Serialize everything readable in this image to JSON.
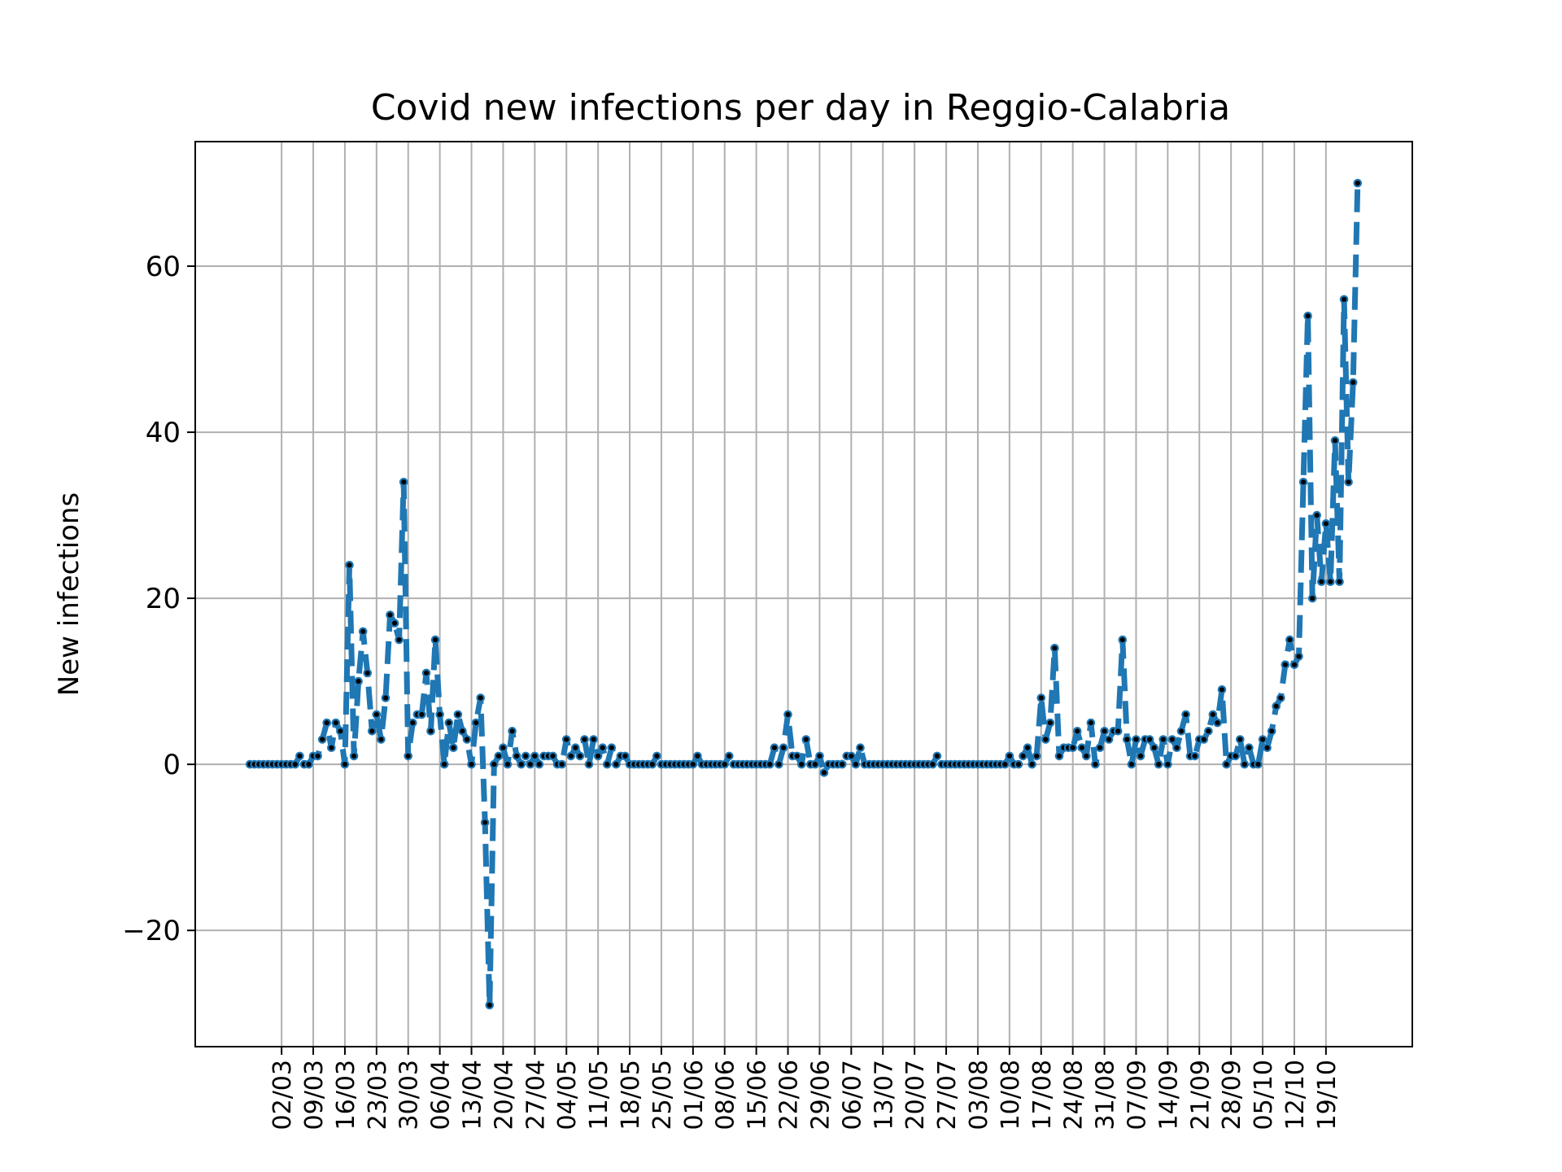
{
  "chart_data": {
    "type": "line",
    "title": "Covid new infections per day in Reggio-Calabria",
    "xlabel": "",
    "ylabel": "New infections",
    "ylim": [
      -34,
      75
    ],
    "yticks": [
      -20,
      0,
      20,
      40,
      60
    ],
    "ytick_labels": [
      "−20",
      "0",
      "20",
      "40",
      "60"
    ],
    "grid": true,
    "legend": "none",
    "line_style": "dashed",
    "x_start": "24/02",
    "x_end": "19/10",
    "xtick_labels": [
      "02/03",
      "09/03",
      "16/03",
      "23/03",
      "30/03",
      "06/04",
      "13/04",
      "20/04",
      "27/04",
      "04/05",
      "11/05",
      "18/05",
      "25/05",
      "01/06",
      "08/06",
      "15/06",
      "22/06",
      "29/06",
      "06/07",
      "13/07",
      "20/07",
      "27/07",
      "03/08",
      "10/08",
      "17/08",
      "24/08",
      "31/08",
      "07/09",
      "14/09",
      "21/09",
      "28/09",
      "05/10",
      "12/10",
      "19/10"
    ],
    "series": [
      {
        "color": "#1f77b4",
        "marker_color": "#000000",
        "values": [
          0,
          0,
          0,
          0,
          0,
          0,
          0,
          0,
          0,
          0,
          0,
          1,
          0,
          0,
          1,
          1,
          3,
          5,
          2,
          5,
          4,
          0,
          24,
          1,
          10,
          16,
          11,
          4,
          6,
          3,
          8,
          18,
          17,
          15,
          34,
          1,
          5,
          6,
          6,
          11,
          4,
          15,
          6,
          0,
          5,
          2,
          6,
          4,
          3,
          0,
          5,
          8,
          -7,
          -29,
          0,
          1,
          2,
          0,
          4,
          1,
          0,
          1,
          0,
          1,
          0,
          1,
          1,
          1,
          0,
          0,
          3,
          1,
          2,
          1,
          3,
          0,
          3,
          1,
          2,
          0,
          2,
          0,
          1,
          1,
          0,
          0,
          0,
          0,
          0,
          0,
          1,
          0,
          0,
          0,
          0,
          0,
          0,
          0,
          0,
          1,
          0,
          0,
          0,
          0,
          0,
          0,
          1,
          0,
          0,
          0,
          0,
          0,
          0,
          0,
          0,
          0,
          2,
          0,
          2,
          6,
          1,
          1,
          0,
          3,
          0,
          0,
          1,
          -1,
          0,
          0,
          0,
          0,
          1,
          1,
          0,
          2,
          0,
          0,
          0,
          0,
          0,
          0,
          0,
          0,
          0,
          0,
          0,
          0,
          0,
          0,
          0,
          0,
          1,
          0,
          0,
          0,
          0,
          0,
          0,
          0,
          0,
          0,
          0,
          0,
          0,
          0,
          0,
          0,
          1,
          0,
          0,
          1,
          2,
          0,
          1,
          8,
          3,
          5,
          14,
          1,
          2,
          2,
          2,
          4,
          2,
          1,
          5,
          0,
          2,
          4,
          3,
          4,
          4,
          15,
          3,
          0,
          3,
          1,
          3,
          3,
          2,
          0,
          3,
          0,
          3,
          2,
          4,
          6,
          1,
          1,
          3,
          3,
          4,
          6,
          5,
          9,
          0,
          1,
          1,
          3,
          0,
          2,
          0,
          0,
          3,
          2,
          4,
          7,
          8,
          12,
          15,
          12,
          13,
          34,
          54,
          20,
          30,
          22,
          29,
          22,
          39,
          22,
          56,
          34,
          46,
          70
        ]
      }
    ]
  }
}
